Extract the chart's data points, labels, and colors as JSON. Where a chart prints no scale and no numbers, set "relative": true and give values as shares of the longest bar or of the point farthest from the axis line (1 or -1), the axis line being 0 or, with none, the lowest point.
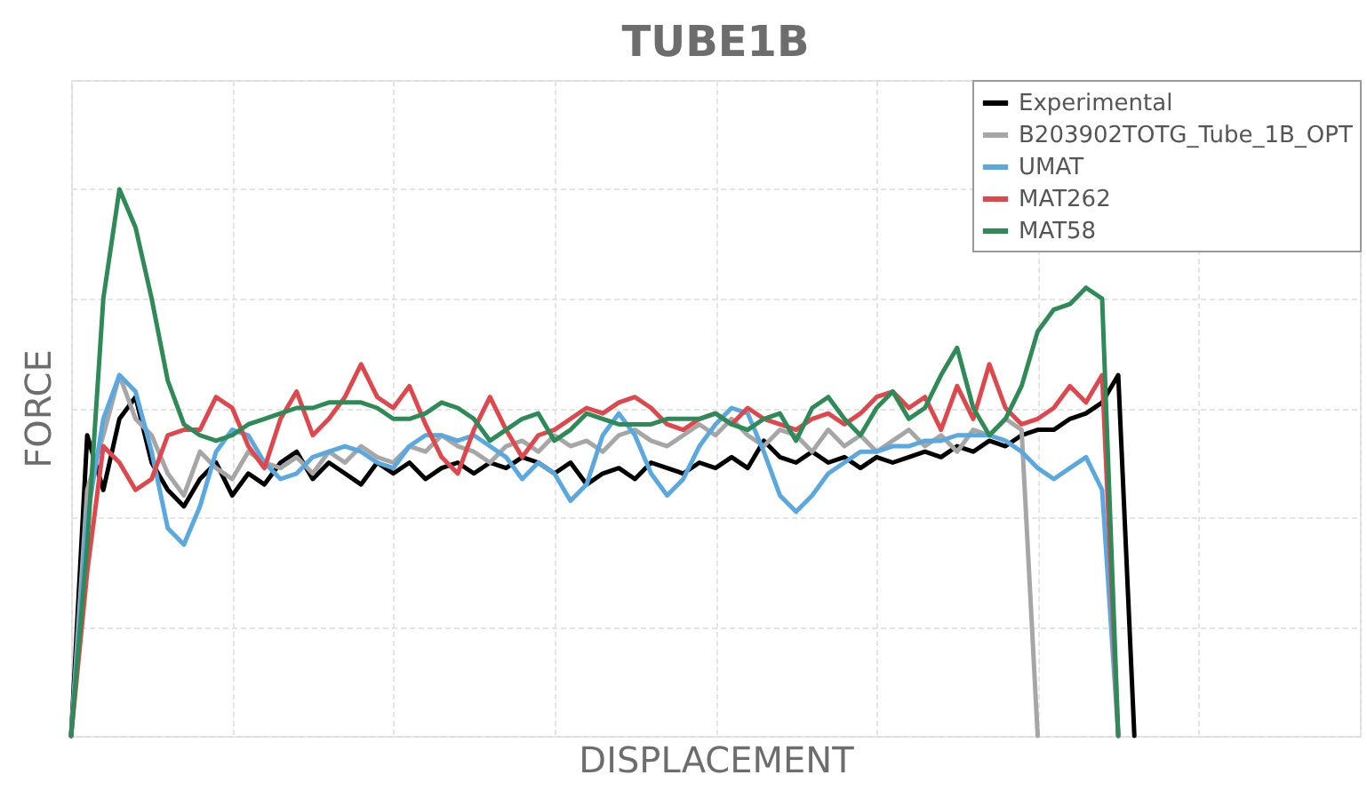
{
  "chart_data": {
    "type": "line",
    "title": "TUBE1B",
    "xlabel": "DISPLACEMENT",
    "ylabel": "FORCE",
    "relative": true,
    "grid": true,
    "legend": "top right",
    "line_style": "solid",
    "categories": [
      null,
      null,
      null,
      null,
      null,
      null,
      null,
      null,
      null,
      null,
      null,
      null,
      null,
      null,
      null,
      null,
      null,
      null,
      null,
      null,
      null,
      null,
      null,
      null,
      null,
      null,
      null,
      null,
      null,
      null,
      null,
      null,
      null,
      null,
      null,
      null,
      null,
      null,
      null,
      null,
      null,
      null,
      null,
      null,
      null,
      null,
      null,
      null,
      null,
      null,
      null,
      null,
      null,
      null,
      null,
      null,
      null,
      null,
      null,
      null,
      null,
      null,
      null,
      null,
      null,
      null,
      null,
      null,
      null,
      null,
      null,
      null,
      null,
      null,
      null,
      null,
      null,
      null,
      null,
      null,
      null
    ],
    "series": [
      {
        "name": "Experimental",
        "color": "#000000",
        "values": [
          0,
          0.55,
          0.45,
          0.58,
          0.62,
          0.5,
          0.45,
          0.42,
          0.47,
          0.5,
          0.44,
          0.48,
          0.46,
          0.5,
          0.52,
          0.47,
          0.5,
          0.48,
          0.46,
          0.5,
          0.48,
          0.5,
          0.47,
          0.49,
          0.5,
          0.48,
          0.5,
          0.49,
          0.51,
          0.5,
          0.48,
          0.5,
          0.46,
          0.48,
          0.49,
          0.47,
          0.5,
          0.49,
          0.48,
          0.5,
          0.49,
          0.51,
          0.49,
          0.54,
          0.51,
          0.5,
          0.52,
          0.5,
          0.51,
          0.49,
          0.51,
          0.5,
          0.51,
          0.52,
          0.51,
          0.53,
          0.52,
          0.54,
          0.53,
          0.55,
          0.56,
          0.56,
          0.58,
          0.59,
          0.61,
          0.66,
          0,
          null,
          null,
          null,
          null,
          null,
          null,
          null,
          null,
          null,
          null,
          null,
          null,
          null,
          null
        ]
      },
      {
        "name": "B203902TOTG_Tube_1B_OPT",
        "color": "#a6a6a6",
        "values": [
          0,
          0.45,
          0.55,
          0.66,
          0.58,
          0.55,
          0.48,
          0.44,
          0.52,
          0.49,
          0.47,
          0.52,
          0.5,
          0.49,
          0.51,
          0.48,
          0.52,
          0.5,
          0.53,
          0.51,
          0.5,
          0.53,
          0.52,
          0.55,
          0.53,
          0.52,
          0.5,
          0.53,
          0.54,
          0.52,
          0.55,
          0.53,
          0.54,
          0.52,
          0.55,
          0.56,
          0.54,
          0.53,
          0.55,
          0.57,
          0.55,
          0.58,
          0.55,
          0.53,
          0.56,
          0.55,
          0.52,
          0.56,
          0.53,
          0.55,
          0.52,
          0.54,
          0.56,
          0.53,
          0.55,
          0.52,
          0.56,
          0.55,
          0.58,
          0.56,
          0,
          null,
          null,
          null,
          null,
          null,
          null,
          null,
          null,
          null,
          null,
          null,
          null,
          null,
          null,
          null,
          null,
          null,
          null,
          null,
          null
        ]
      },
      {
        "name": "UMAT",
        "color": "#5aa8e0",
        "values": [
          0,
          0.4,
          0.58,
          0.66,
          0.63,
          0.52,
          0.38,
          0.35,
          0.42,
          0.52,
          0.56,
          0.55,
          0.5,
          0.47,
          0.48,
          0.51,
          0.52,
          0.53,
          0.52,
          0.5,
          0.49,
          0.53,
          0.55,
          0.55,
          0.54,
          0.55,
          0.53,
          0.51,
          0.47,
          0.5,
          0.48,
          0.43,
          0.46,
          0.55,
          0.59,
          0.55,
          0.48,
          0.44,
          0.47,
          0.53,
          0.57,
          0.6,
          0.59,
          0.52,
          0.44,
          0.41,
          0.44,
          0.48,
          0.5,
          0.52,
          0.52,
          0.53,
          0.53,
          0.54,
          0.54,
          0.55,
          0.55,
          0.55,
          0.54,
          0.52,
          0.49,
          0.47,
          0.49,
          0.51,
          0.45,
          0,
          null,
          null,
          null,
          null,
          null,
          null,
          null,
          null,
          null,
          null,
          null,
          null,
          null,
          null,
          null
        ]
      },
      {
        "name": "MAT262",
        "color": "#e0474c",
        "values": [
          0,
          0.3,
          0.53,
          0.5,
          0.45,
          0.47,
          0.55,
          0.56,
          0.56,
          0.62,
          0.6,
          0.53,
          0.49,
          0.58,
          0.63,
          0.55,
          0.58,
          0.62,
          0.68,
          0.62,
          0.6,
          0.64,
          0.57,
          0.51,
          0.48,
          0.56,
          0.62,
          0.56,
          0.51,
          0.55,
          0.56,
          0.58,
          0.6,
          0.59,
          0.61,
          0.62,
          0.6,
          0.57,
          0.56,
          0.58,
          0.59,
          0.57,
          0.6,
          0.58,
          0.57,
          0.56,
          0.58,
          0.59,
          0.57,
          0.59,
          0.62,
          0.63,
          0.6,
          0.62,
          0.56,
          0.64,
          0.58,
          0.68,
          0.6,
          0.57,
          0.58,
          0.6,
          0.64,
          0.61,
          0.66,
          0,
          null,
          null,
          null,
          null,
          null,
          null,
          null,
          null,
          null,
          null,
          null,
          null,
          null,
          null,
          null
        ]
      },
      {
        "name": "MAT58",
        "color": "#2e8b57",
        "values": [
          0,
          0.35,
          0.8,
          1.0,
          0.93,
          0.8,
          0.65,
          0.57,
          0.55,
          0.54,
          0.55,
          0.57,
          0.58,
          0.59,
          0.6,
          0.6,
          0.61,
          0.61,
          0.61,
          0.6,
          0.58,
          0.58,
          0.59,
          0.61,
          0.6,
          0.58,
          0.54,
          0.56,
          0.58,
          0.59,
          0.54,
          0.56,
          0.59,
          0.58,
          0.57,
          0.57,
          0.57,
          0.58,
          0.58,
          0.58,
          0.59,
          0.57,
          0.56,
          0.58,
          0.59,
          0.54,
          0.6,
          0.62,
          0.58,
          0.55,
          0.6,
          0.63,
          0.58,
          0.6,
          0.66,
          0.71,
          0.6,
          0.55,
          0.58,
          0.64,
          0.74,
          0.78,
          0.79,
          0.82,
          0.8,
          0,
          null,
          null,
          null,
          null,
          null,
          null,
          null,
          null,
          null,
          null,
          null,
          null,
          null,
          null,
          null
        ]
      }
    ]
  }
}
